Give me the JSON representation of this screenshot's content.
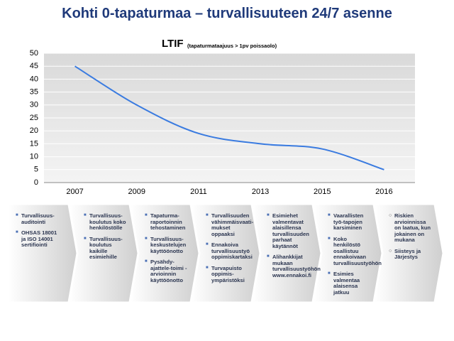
{
  "slide_title": "Kohti 0-tapaturmaa – turvallisuuteen 24/7 asenne",
  "chart_data": {
    "type": "line",
    "title": "LTIF",
    "subtitle": "(tapaturmataajuus > 1pv poissaolo)",
    "categories": [
      "2007",
      "2009",
      "2011",
      "2013",
      "2015",
      "2016"
    ],
    "values": [
      45,
      30,
      19,
      15,
      13,
      5
    ],
    "color": "#3a7be0",
    "ylim": [
      0,
      50
    ],
    "yticks": [
      0,
      5,
      10,
      15,
      20,
      25,
      30,
      35,
      40,
      45,
      50
    ],
    "grid": true
  },
  "steps": [
    [
      "Turvallisuus-auditointi",
      "OHSAS 18001 ja ISO 14001 sertifiointi"
    ],
    [
      "Turvallisuus-koulutus koko henkilöstölle",
      "Turvallisuus-koulutus kaikille esimiehille"
    ],
    [
      "Tapaturma-raportoinnin tehostaminen",
      "Turvallisuus-keskustelujen käyttöönotto",
      "Pysähdy-ajattele-toimi -arvioinnin käyttöönotto"
    ],
    [
      "Turvallisuuden vähimmäisvaati-mukset oppaaksi",
      "Ennakoiva turvallisuustyö oppimiskartaksi",
      "Turvapuisto oppimis-ympäristöksi"
    ],
    [
      "Esimiehet valmentavat alaisillensa turvallisuuden parhaat käytännöt",
      "Alihankkijat mukaan turvallisuustyöhön www.ennakoi.fi"
    ],
    [
      "Vaarallisten työ-tapojen karsiminen",
      "Koko henkilöstö osallistuu ennakoivaan turvallisuustyöhön",
      "Esimies valmentaa alaisensa jatkuu"
    ],
    [
      "Riskien arvioinnissa on laatua, kun jokainen on mukana",
      "Siisteys ja Järjestys"
    ]
  ]
}
